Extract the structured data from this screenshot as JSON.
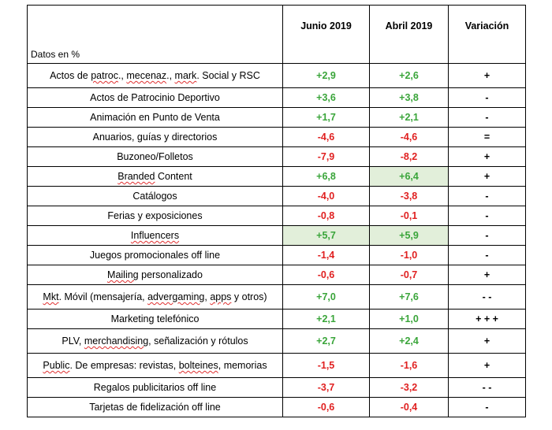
{
  "header": {
    "label": "Datos en %",
    "col1": "Junio 2019",
    "col2": "Abril 2019",
    "col3": "Variación"
  },
  "rows": [
    {
      "category": [
        "Actos de ",
        "patroc",
        "., ",
        "mecenaz",
        "., ",
        "mark",
        ". Social y RSC"
      ],
      "u": [
        1,
        3,
        5
      ],
      "junio": "+2,9",
      "abril": "+2,6",
      "variacion": "+",
      "junio_sign": "pos",
      "abril_sign": "pos"
    },
    {
      "category": [
        "Actos de Patrocinio Deportivo"
      ],
      "u": [],
      "junio": "+3,6",
      "abril": "+3,8",
      "variacion": "-",
      "junio_sign": "pos",
      "abril_sign": "pos"
    },
    {
      "category": [
        "Animación en Punto de Venta"
      ],
      "u": [],
      "junio": "+1,7",
      "abril": "+2,1",
      "variacion": "-",
      "junio_sign": "pos",
      "abril_sign": "pos"
    },
    {
      "category": [
        "Anuarios, guías y directorios"
      ],
      "u": [],
      "junio": "-4,6",
      "abril": "-4,6",
      "variacion": "=",
      "junio_sign": "neg",
      "abril_sign": "neg"
    },
    {
      "category": [
        "Buzoneo/Folletos"
      ],
      "u": [],
      "junio": "-7,9",
      "abril": "-8,2",
      "variacion": "+",
      "junio_sign": "neg",
      "abril_sign": "neg"
    },
    {
      "category": [
        "Branded",
        " Content"
      ],
      "u": [
        0
      ],
      "junio": "+6,8",
      "abril": "+6,4",
      "variacion": "+",
      "junio_sign": "pos",
      "abril_sign": "pos"
    },
    {
      "category": [
        "Catálogos"
      ],
      "u": [],
      "junio": "-4,0",
      "abril": "-3,8",
      "variacion": "-",
      "junio_sign": "neg",
      "abril_sign": "neg"
    },
    {
      "category": [
        "Ferias y exposiciones"
      ],
      "u": [],
      "junio": "-0,8",
      "abril": "-0,1",
      "variacion": "-",
      "junio_sign": "neg",
      "abril_sign": "neg"
    },
    {
      "category": [
        "Influencers"
      ],
      "u": [
        0
      ],
      "junio": "+5,7",
      "abril": "+5,9",
      "variacion": "-",
      "junio_sign": "pos",
      "abril_sign": "pos"
    },
    {
      "category": [
        "Juegos promocionales off line"
      ],
      "u": [],
      "junio": "-1,4",
      "abril": "-1,0",
      "variacion": "-",
      "junio_sign": "neg",
      "abril_sign": "neg"
    },
    {
      "category": [
        "Mailing",
        " personalizado"
      ],
      "u": [
        0
      ],
      "junio": "-0,6",
      "abril": "-0,7",
      "variacion": "+",
      "junio_sign": "neg",
      "abril_sign": "neg"
    },
    {
      "category": [
        "Mkt",
        ". Móvil (mensajería, ",
        "advergaming",
        ", ",
        "apps",
        " y otros)"
      ],
      "u": [
        0,
        2,
        4
      ],
      "junio": "+7,0",
      "abril": "+7,6",
      "variacion": "- -",
      "junio_sign": "pos",
      "abril_sign": "pos"
    },
    {
      "category": [
        "Marketing telefónico"
      ],
      "u": [],
      "junio": "+2,1",
      "abril": "+1,0",
      "variacion": "+ + +",
      "junio_sign": "pos",
      "abril_sign": "pos"
    },
    {
      "category": [
        "PLV, ",
        "merchandising",
        ", señalización y rótulos"
      ],
      "u": [
        1
      ],
      "junio": "+2,7",
      "abril": "+2,4",
      "variacion": "+",
      "junio_sign": "pos",
      "abril_sign": "pos"
    },
    {
      "category": [
        "Public",
        ". De empresas: revistas, ",
        "bolteines",
        ", memorias"
      ],
      "u": [
        0,
        2
      ],
      "junio": "-1,5",
      "abril": "-1,6",
      "variacion": "+",
      "junio_sign": "neg",
      "abril_sign": "neg"
    },
    {
      "category": [
        "Regalos publicitarios off line"
      ],
      "u": [],
      "junio": "-3,7",
      "abril": "-3,2",
      "variacion": "- -",
      "junio_sign": "neg",
      "abril_sign": "neg"
    },
    {
      "category": [
        "Tarjetas de fidelización off line"
      ],
      "u": [],
      "junio": "-0,6",
      "abril": "-0,4",
      "variacion": "-",
      "junio_sign": "neg",
      "abril_sign": "neg"
    }
  ],
  "highlight": {
    "Branded Content": [
      "abril"
    ],
    "Influencers": [
      "junio",
      "abril"
    ]
  }
}
